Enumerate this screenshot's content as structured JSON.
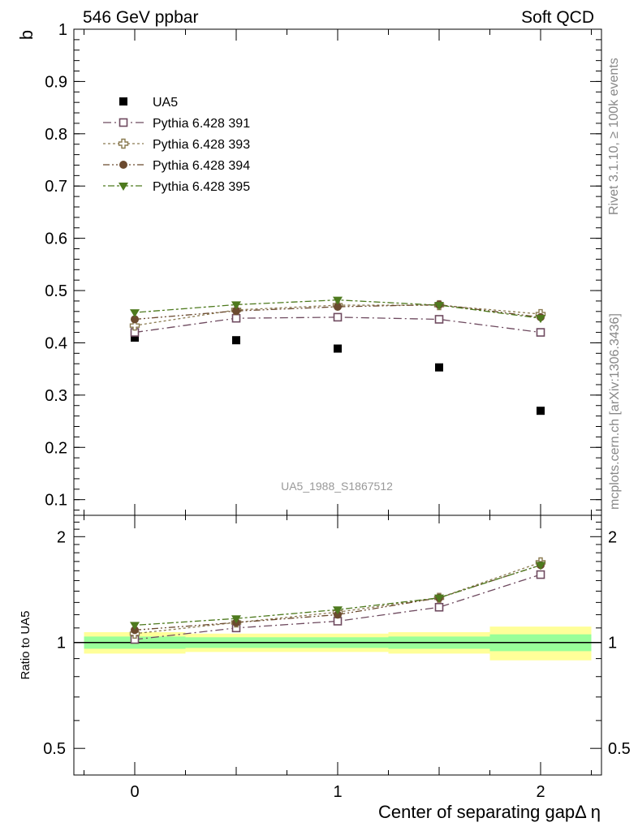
{
  "header": {
    "left": "546 GeV ppbar",
    "right": "Soft QCD"
  },
  "side_text": {
    "rivet": "Rivet 3.1.10, ≥ 100k events",
    "mcplots": "mcplots.cern.ch [arXiv:1306.3436]"
  },
  "watermark": "UA5_1988_S1867512",
  "chart_data": [
    {
      "type": "scatter",
      "ylabel": "b",
      "x": [
        0,
        0.5,
        1,
        1.5,
        2
      ],
      "xlim": [
        -0.3,
        2.3
      ],
      "ylim": [
        0.07,
        1.0
      ],
      "yticks": [
        "0.1",
        "0.2",
        "0.3",
        "0.4",
        "0.5",
        "0.6",
        "0.7",
        "0.8",
        "0.9",
        "1"
      ],
      "legend_position": "top-left",
      "series": [
        {
          "name": "UA5",
          "values": [
            0.41,
            0.405,
            0.389,
            0.353,
            0.27
          ],
          "color": "#000000",
          "marker": "filled-square"
        },
        {
          "name": "Pythia 6.428 391",
          "values": [
            0.42,
            0.447,
            0.449,
            0.445,
            0.42
          ],
          "color": "#6e4a5f",
          "marker": "open-square"
        },
        {
          "name": "Pythia 6.428 393",
          "values": [
            0.433,
            0.463,
            0.472,
            0.472,
            0.455
          ],
          "color": "#8a7a50",
          "marker": "open-cross"
        },
        {
          "name": "Pythia 6.428 394",
          "values": [
            0.445,
            0.461,
            0.469,
            0.473,
            0.449
          ],
          "color": "#6b4a2f",
          "marker": "filled-circle"
        },
        {
          "name": "Pythia 6.428 395",
          "values": [
            0.458,
            0.473,
            0.482,
            0.472,
            0.447
          ],
          "color": "#4e7a1e",
          "marker": "filled-triangle-down"
        }
      ]
    },
    {
      "type": "line",
      "ylabel": "Ratio to UA5",
      "x": [
        0,
        0.5,
        1,
        1.5,
        2
      ],
      "xlabel": "Center of separating gapΔ η",
      "xticks": [
        "0",
        "1",
        "2"
      ],
      "ylim": [
        0.42,
        2.3
      ],
      "log_scale_y": true,
      "yticks": [
        "0.5",
        "1",
        "2"
      ],
      "band_edges": [
        -0.25,
        0.25,
        0.75,
        1.25,
        1.75,
        2.25
      ],
      "band_inner_halfwidth": [
        0.04,
        0.035,
        0.035,
        0.04,
        0.055
      ],
      "band_outer_halfwidth": [
        0.07,
        0.06,
        0.06,
        0.07,
        0.11
      ],
      "series": [
        {
          "name": "Pythia 6.428 391",
          "values": [
            1.02,
            1.1,
            1.15,
            1.26,
            1.56
          ],
          "color": "#6e4a5f",
          "marker": "open-square"
        },
        {
          "name": "Pythia 6.428 393",
          "values": [
            1.06,
            1.14,
            1.22,
            1.34,
            1.69
          ],
          "color": "#8a7a50",
          "marker": "open-cross"
        },
        {
          "name": "Pythia 6.428 394",
          "values": [
            1.085,
            1.14,
            1.2,
            1.34,
            1.66
          ],
          "color": "#6b4a2f",
          "marker": "filled-circle"
        },
        {
          "name": "Pythia 6.428 395",
          "values": [
            1.12,
            1.17,
            1.24,
            1.34,
            1.66
          ],
          "color": "#4e7a1e",
          "marker": "filled-triangle-down"
        }
      ]
    }
  ]
}
